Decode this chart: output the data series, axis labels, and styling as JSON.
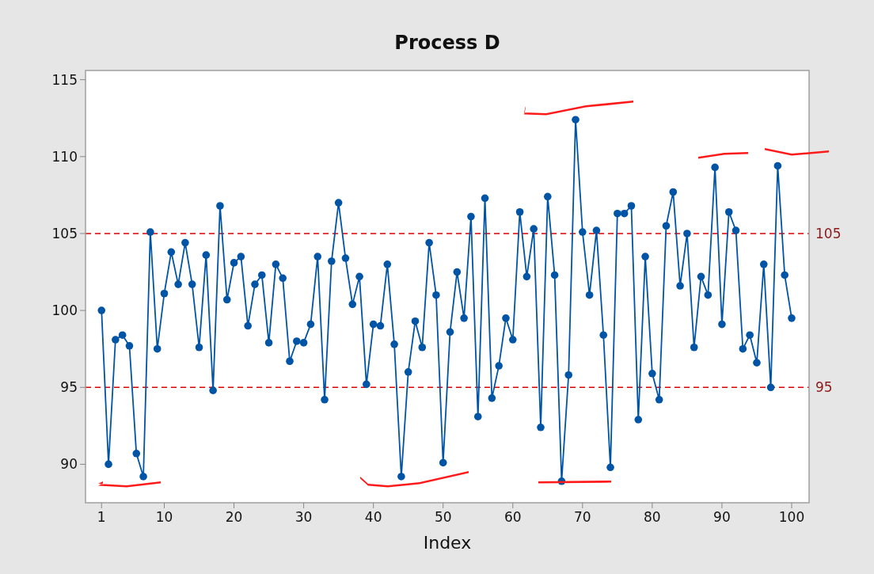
{
  "chart_data": {
    "type": "line",
    "title": "Process D",
    "xlabel": "Index",
    "x": [
      1,
      2,
      3,
      4,
      5,
      6,
      7,
      8,
      9,
      10,
      11,
      12,
      13,
      14,
      15,
      16,
      17,
      18,
      19,
      20,
      21,
      22,
      23,
      24,
      25,
      26,
      27,
      28,
      29,
      30,
      31,
      32,
      33,
      34,
      35,
      36,
      37,
      38,
      39,
      40,
      41,
      42,
      43,
      44,
      45,
      46,
      47,
      48,
      49,
      50,
      51,
      52,
      53,
      54,
      55,
      56,
      57,
      58,
      59,
      60,
      61,
      62,
      63,
      64,
      65,
      66,
      67,
      68,
      69,
      70,
      71,
      72,
      73,
      74,
      75,
      76,
      77,
      78,
      79,
      80,
      81,
      82,
      83,
      84,
      85,
      86,
      87,
      88,
      89,
      90,
      91,
      92,
      93,
      94,
      95,
      96,
      97,
      98,
      99,
      100
    ],
    "series": [
      {
        "color": "#0054a6",
        "values": [
          100.0,
          90.0,
          98.1,
          98.4,
          97.7,
          90.7,
          89.2,
          105.1,
          97.5,
          101.1,
          103.8,
          101.7,
          104.4,
          101.7,
          97.6,
          103.6,
          94.8,
          106.8,
          100.7,
          103.1,
          103.5,
          99.0,
          101.7,
          102.3,
          97.9,
          103.0,
          102.1,
          96.7,
          98.0,
          97.9,
          99.1,
          103.5,
          94.2,
          103.2,
          107.0,
          103.4,
          100.4,
          102.2,
          95.2,
          99.1,
          99.0,
          103.0,
          97.8,
          89.2,
          96.0,
          99.3,
          97.6,
          104.4,
          101.0,
          90.1,
          98.6,
          102.5,
          99.5,
          106.1,
          93.1,
          107.3,
          94.3,
          96.4,
          99.5,
          98.1,
          106.4,
          102.2,
          105.3,
          92.4,
          107.4,
          102.3,
          88.9,
          95.8,
          112.4,
          105.1,
          101.0,
          105.2,
          98.4,
          89.8,
          106.3,
          106.3,
          106.8,
          92.9,
          103.5,
          95.9,
          94.2,
          105.5,
          107.7,
          101.6,
          105.0,
          97.6,
          102.2,
          101.0,
          109.3,
          99.1,
          106.4,
          105.2,
          97.5,
          98.4,
          96.6,
          103.0,
          95.0,
          109.4,
          102.3,
          99.5
        ]
      }
    ],
    "xlim": [
      -1.3,
      102.5
    ],
    "xticks": [
      1,
      10,
      20,
      30,
      40,
      50,
      60,
      70,
      80,
      90,
      100
    ],
    "ylim": [
      87.5,
      115.6
    ],
    "yticks": [
      90,
      95,
      100,
      105,
      110,
      115
    ],
    "marker": "circle",
    "line_style": "solid",
    "ref_lines": [
      {
        "axis": "y",
        "value": 105,
        "label": "105",
        "color": "#e00000",
        "line_style": "dashed"
      },
      {
        "axis": "y",
        "value": 95,
        "label": "95",
        "color": "#e00000",
        "line_style": "dashed"
      }
    ]
  }
}
